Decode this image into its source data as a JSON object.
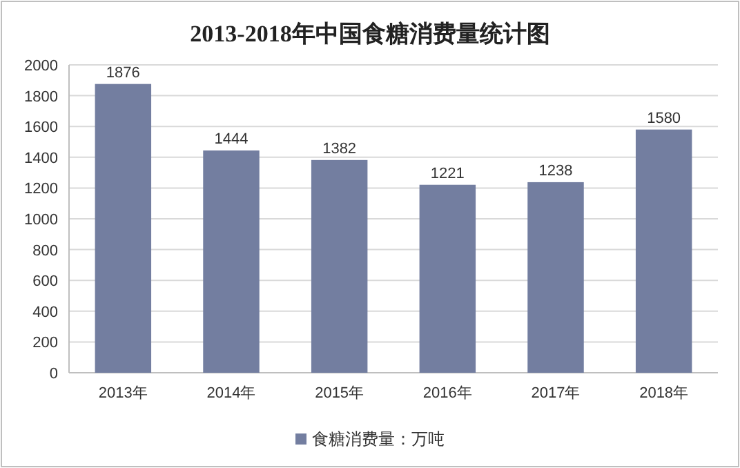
{
  "chart_data": {
    "type": "bar",
    "title": "2013-2018年中国食糖消费量统计图",
    "categories": [
      "2013年",
      "2014年",
      "2015年",
      "2016年",
      "2017年",
      "2018年"
    ],
    "series": [
      {
        "name": "食糖消费量：万吨",
        "color": "#737ea0",
        "values": [
          1876,
          1444,
          1382,
          1221,
          1238,
          1580
        ]
      }
    ],
    "ylim": [
      0,
      2000
    ],
    "yticks": [
      0,
      200,
      400,
      600,
      800,
      1000,
      1200,
      1400,
      1600,
      1800,
      2000
    ],
    "grid": "y",
    "legend": "bottom",
    "data_labels": true
  }
}
